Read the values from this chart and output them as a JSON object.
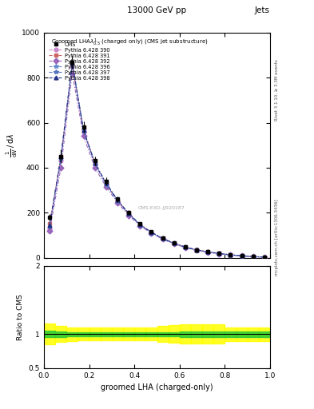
{
  "title_top": "13000 GeV pp",
  "title_right": "Jets",
  "xlabel": "groomed LHA (charged-only)",
  "ylabel_ratio": "Ratio to CMS",
  "right_label_top": "Rivet 3.1.10, ≥ 3.3M events",
  "right_label_bot": "mcplots.cern.ch [arXiv:1306.3436]",
  "watermark": "CMS-EXO-JJ920187",
  "x_data": [
    0.025,
    0.075,
    0.125,
    0.175,
    0.225,
    0.275,
    0.325,
    0.375,
    0.425,
    0.475,
    0.525,
    0.575,
    0.625,
    0.675,
    0.725,
    0.775,
    0.825,
    0.875,
    0.925,
    0.975
  ],
  "cms_y": [
    180,
    450,
    870,
    580,
    430,
    340,
    260,
    200,
    150,
    115,
    87,
    65,
    48,
    35,
    26,
    19,
    13,
    9,
    5,
    3
  ],
  "cms_yerr": [
    15,
    30,
    30,
    25,
    20,
    17,
    13,
    10,
    8,
    6,
    5,
    4,
    3,
    2.5,
    2,
    1.5,
    1,
    0.8,
    0.5,
    0.3
  ],
  "py390_y": [
    130,
    430,
    850,
    560,
    415,
    325,
    252,
    193,
    145,
    111,
    84,
    63,
    46,
    34,
    25,
    18,
    12,
    8,
    4.5,
    2.5
  ],
  "py391_y": [
    150,
    450,
    860,
    570,
    420,
    330,
    255,
    196,
    147,
    113,
    86,
    64,
    47,
    34.5,
    25.5,
    18.5,
    12.5,
    8.5,
    4.8,
    2.8
  ],
  "py392_y": [
    120,
    400,
    820,
    540,
    400,
    315,
    245,
    188,
    142,
    108,
    82,
    61,
    45,
    33,
    24,
    17.5,
    12,
    8,
    4.2,
    2.3
  ],
  "py396_y": [
    140,
    440,
    865,
    565,
    418,
    328,
    254,
    195,
    146,
    112,
    85,
    64,
    47,
    34.5,
    25.5,
    18.5,
    12.5,
    8.5,
    4.7,
    2.7
  ],
  "py397_y": [
    138,
    438,
    862,
    562,
    416,
    326,
    252,
    194,
    145,
    111,
    84.5,
    63.5,
    46.5,
    34,
    25,
    18,
    12.2,
    8.2,
    4.6,
    2.6
  ],
  "py398_y": [
    145,
    448,
    868,
    568,
    422,
    332,
    257,
    197,
    148,
    113.5,
    86,
    64.5,
    47.5,
    35,
    25.8,
    18.8,
    12.8,
    8.7,
    4.9,
    2.9
  ],
  "colors": {
    "cms": "#000000",
    "py390": "#cc88cc",
    "py391": "#cc6666",
    "py392": "#9966bb",
    "py396": "#6688cc",
    "py397": "#5577bb",
    "py398": "#223388"
  },
  "ylim_main": [
    0,
    1000
  ],
  "ylim_ratio": [
    0.5,
    2.0
  ],
  "yticks_ratio": [
    0.5,
    1.0,
    1.5,
    2.0
  ],
  "ratio_xbins": [
    0.0,
    0.05,
    0.1,
    0.15,
    0.2,
    0.25,
    0.3,
    0.35,
    0.4,
    0.45,
    0.5,
    0.55,
    0.6,
    0.65,
    0.7,
    0.75,
    0.8,
    0.85,
    0.9,
    0.95,
    1.0
  ],
  "ratio_green_low": [
    0.95,
    0.96,
    0.97,
    0.97,
    0.97,
    0.97,
    0.97,
    0.97,
    0.97,
    0.97,
    0.97,
    0.97,
    0.96,
    0.96,
    0.96,
    0.96,
    0.96,
    0.96,
    0.96,
    0.96
  ],
  "ratio_green_high": [
    1.05,
    1.04,
    1.03,
    1.03,
    1.03,
    1.03,
    1.03,
    1.03,
    1.03,
    1.03,
    1.03,
    1.03,
    1.04,
    1.04,
    1.04,
    1.04,
    1.04,
    1.04,
    1.04,
    1.04
  ],
  "ratio_yellow_low": [
    0.85,
    0.88,
    0.9,
    0.91,
    0.91,
    0.91,
    0.91,
    0.91,
    0.91,
    0.91,
    0.88,
    0.87,
    0.86,
    0.86,
    0.86,
    0.86,
    0.9,
    0.9,
    0.9,
    0.9
  ],
  "ratio_yellow_high": [
    1.15,
    1.12,
    1.1,
    1.09,
    1.09,
    1.09,
    1.09,
    1.09,
    1.09,
    1.09,
    1.12,
    1.13,
    1.14,
    1.14,
    1.14,
    1.14,
    1.1,
    1.1,
    1.1,
    1.1
  ]
}
